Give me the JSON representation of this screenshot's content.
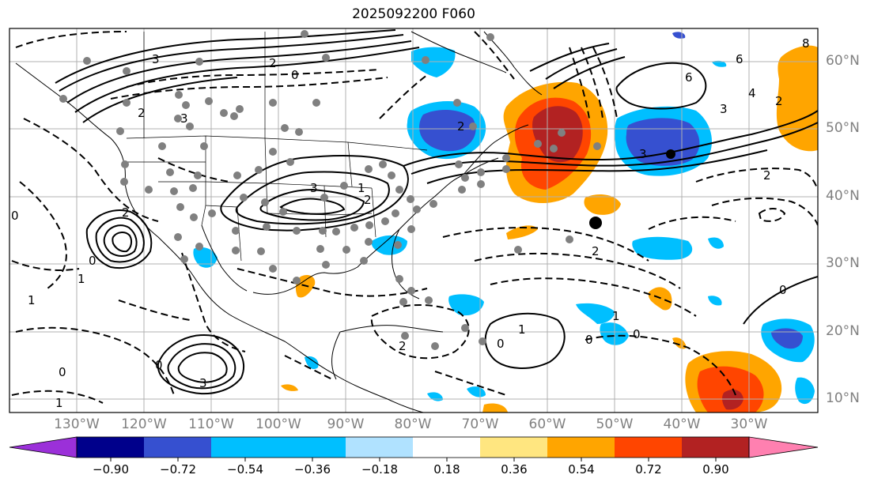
{
  "title": "2025092200 F060",
  "lat_labels": [
    "60°N",
    "50°N",
    "40°N",
    "30°N",
    "20°N",
    "10°N"
  ],
  "lon_labels": [
    "130°W",
    "120°W",
    "110°W",
    "100°W",
    "90°W",
    "80°W",
    "70°W",
    "60°W",
    "50°W",
    "40°W",
    "30°W"
  ],
  "contour_labels": [
    "3",
    "0",
    "3",
    "2",
    "2",
    "3",
    "2",
    "1",
    "1",
    "2",
    "2",
    "0",
    "2",
    "3",
    "1",
    "0",
    "2",
    "3",
    "6",
    "4",
    "3",
    "2",
    "6",
    "8",
    "0",
    "0",
    "1",
    "0",
    "1",
    "0",
    "1",
    "0",
    "0",
    "2"
  ],
  "colorbar": {
    "ticks": [
      "−0.90",
      "−0.72",
      "−0.54",
      "−0.36",
      "−0.18",
      "0.18",
      "0.36",
      "0.54",
      "0.72",
      "0.90"
    ],
    "colors": [
      "#9b30d9",
      "#00008b",
      "#3650d0",
      "#00bfff",
      "#b0e2ff",
      "#ffffff",
      "#ffe680",
      "#ffa500",
      "#ff4500",
      "#b22222",
      "#ff80b0"
    ]
  },
  "map_colors": {
    "light_blue": "#b0e2ff",
    "cyan": "#00bfff",
    "royal_blue": "#3650d0",
    "navy": "#00008b",
    "yellow": "#ffe680",
    "orange": "#ffa500",
    "red_orange": "#ff4500",
    "dark_red": "#b22222",
    "station_dots": "#808080"
  }
}
